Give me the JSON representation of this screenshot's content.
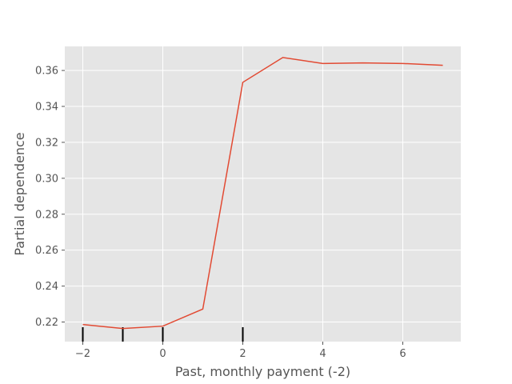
{
  "chart_data": {
    "type": "line",
    "title": "",
    "xlabel": "Past, monthly payment (-2)",
    "ylabel": "Partial dependence",
    "xlim": [
      -2.45,
      7.45
    ],
    "ylim": [
      0.2091,
      0.3734
    ],
    "grid": true,
    "x_ticks": [
      -2,
      0,
      2,
      4,
      6
    ],
    "x_tick_labels": [
      "−2",
      "0",
      "2",
      "4",
      "6"
    ],
    "y_ticks": [
      0.22,
      0.24,
      0.26,
      0.28,
      0.3,
      0.32,
      0.34,
      0.36
    ],
    "y_tick_labels": [
      "0.22",
      "0.24",
      "0.26",
      "0.28",
      "0.30",
      "0.32",
      "0.34",
      "0.36"
    ],
    "series": [
      {
        "color": "#E24A33",
        "x": [
          -2,
          -1,
          0,
          1,
          2,
          3,
          4,
          5,
          6,
          7
        ],
        "y": [
          0.2186,
          0.2164,
          0.2177,
          0.2272,
          0.3534,
          0.3672,
          0.3639,
          0.3642,
          0.3639,
          0.3629
        ]
      }
    ],
    "rug_x": [
      -2,
      -1,
      0,
      2
    ],
    "background_color": "#E5E5E5",
    "grid_color": "#FFFFFF"
  }
}
